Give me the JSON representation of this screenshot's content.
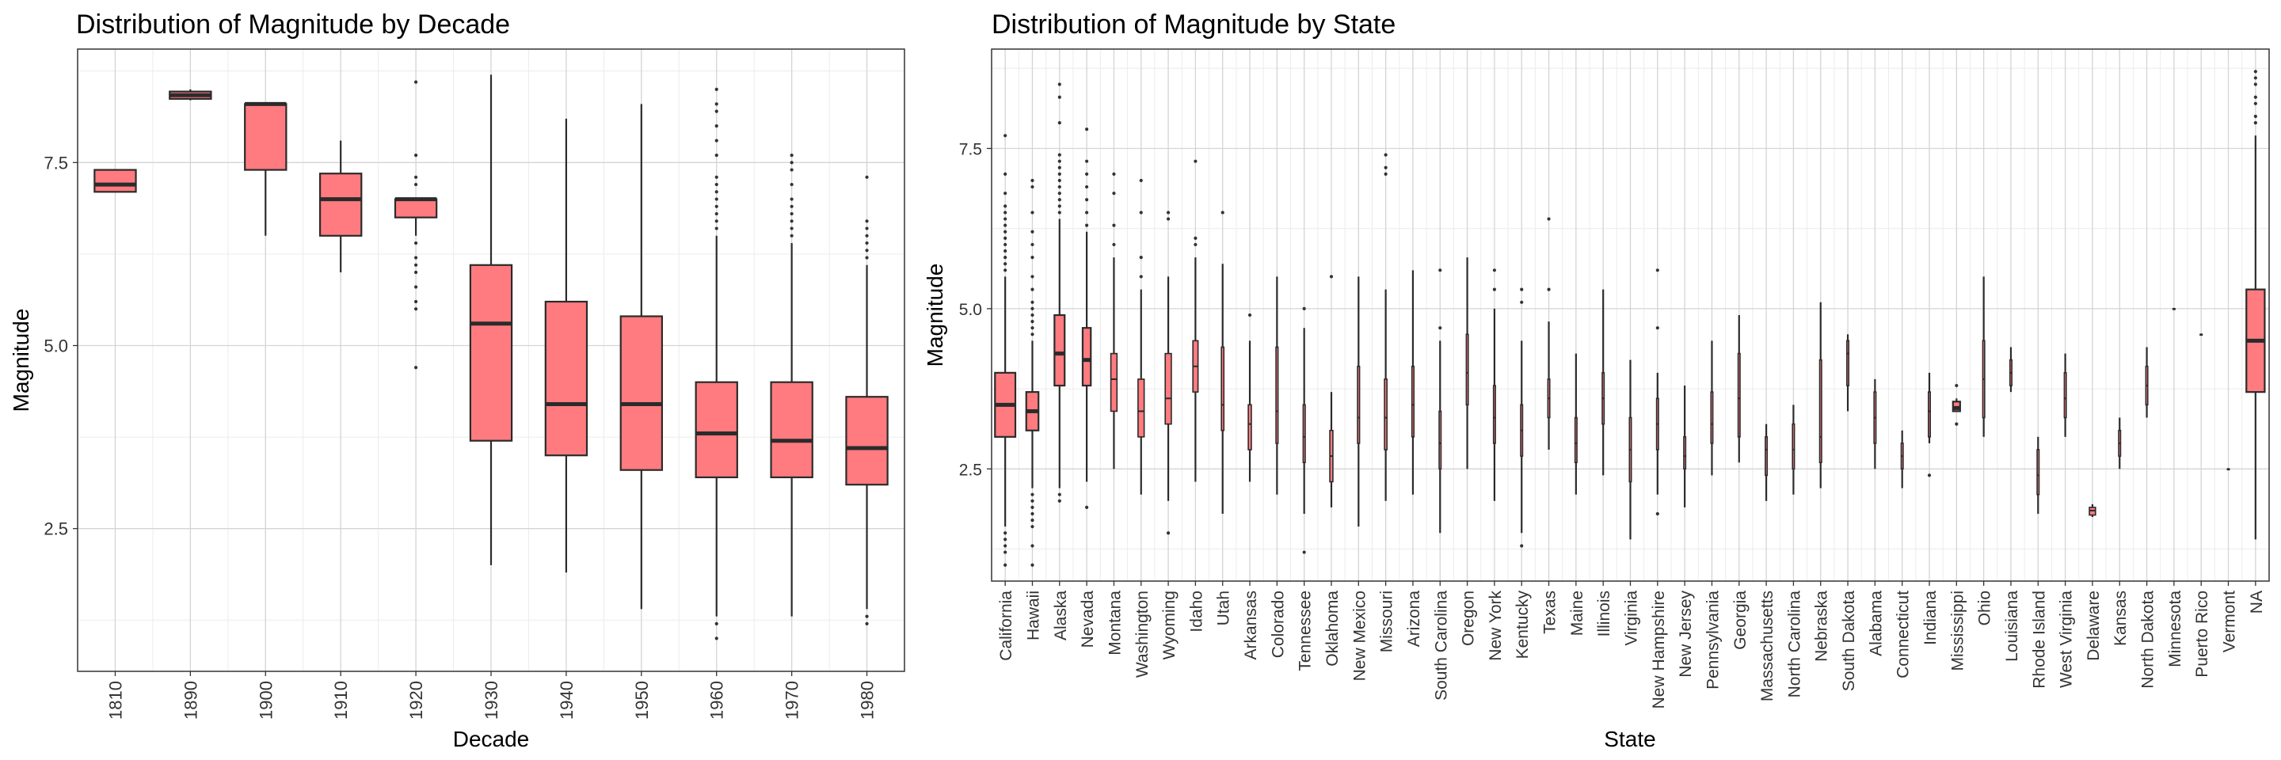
{
  "colors": {
    "box_fill": "#ff7b7f",
    "box_stroke": "#2b2b2b",
    "grid_major": "#d4d4d4",
    "grid_minor": "#ececec",
    "panel_border": "#333333",
    "text": "#000000"
  },
  "chart_data": [
    {
      "type": "box",
      "title": "Distribution of Magnitude by Decade",
      "xlabel": "Decade",
      "ylabel": "Magnitude",
      "ylim": [
        0.55,
        9.05
      ],
      "yticks": [
        2.5,
        5.0,
        7.5
      ],
      "ytick_labels": [
        "2.5",
        "5.0",
        "7.5"
      ],
      "grid": true,
      "categories": [
        "1810",
        "1890",
        "1900",
        "1910",
        "1920",
        "1930",
        "1940",
        "1950",
        "1960",
        "1970",
        "1980"
      ],
      "boxes": [
        {
          "min": 7.1,
          "q1": 7.1,
          "median": 7.2,
          "q3": 7.4,
          "max": 7.4,
          "outliers": []
        },
        {
          "min": 8.35,
          "q1": 8.37,
          "median": 8.42,
          "q3": 8.47,
          "max": 8.5,
          "outliers": []
        },
        {
          "min": 6.5,
          "q1": 7.4,
          "median": 8.3,
          "q3": 8.3,
          "max": 8.3,
          "outliers": []
        },
        {
          "min": 6.0,
          "q1": 6.5,
          "median": 7.0,
          "q3": 7.35,
          "max": 7.8,
          "outliers": []
        },
        {
          "min": 6.5,
          "q1": 6.75,
          "median": 7.0,
          "q3": 7.0,
          "max": 7.0,
          "outliers": [
            8.6,
            7.6,
            7.3,
            7.2,
            6.4,
            6.2,
            6.1,
            6.0,
            5.8,
            5.6,
            5.5,
            4.7
          ]
        },
        {
          "min": 2.0,
          "q1": 3.7,
          "median": 5.3,
          "q3": 6.1,
          "max": 8.7,
          "outliers": []
        },
        {
          "min": 1.9,
          "q1": 3.5,
          "median": 4.2,
          "q3": 5.6,
          "max": 8.1,
          "outliers": []
        },
        {
          "min": 1.4,
          "q1": 3.3,
          "median": 4.2,
          "q3": 5.4,
          "max": 8.3,
          "outliers": []
        },
        {
          "min": 1.3,
          "q1": 3.2,
          "median": 3.8,
          "q3": 4.5,
          "max": 6.5,
          "outliers": [
            8.5,
            8.3,
            8.2,
            8.0,
            7.8,
            7.6,
            7.3,
            7.2,
            7.1,
            7.0,
            6.9,
            6.8,
            6.7,
            6.6,
            1.2,
            1.0
          ]
        },
        {
          "min": 1.3,
          "q1": 3.2,
          "median": 3.7,
          "q3": 4.5,
          "max": 6.4,
          "outliers": [
            7.6,
            7.5,
            7.4,
            7.2,
            7.0,
            6.9,
            6.8,
            6.7,
            6.6,
            6.5
          ]
        },
        {
          "min": 1.4,
          "q1": 3.1,
          "median": 3.6,
          "q3": 4.3,
          "max": 6.1,
          "outliers": [
            7.3,
            6.7,
            6.6,
            6.5,
            6.4,
            6.3,
            6.2,
            1.3,
            1.2
          ]
        }
      ]
    },
    {
      "type": "box",
      "title": "Distribution of Magnitude by State",
      "xlabel": "State",
      "ylabel": "Magnitude",
      "ylim": [
        0.75,
        9.05
      ],
      "yticks": [
        2.5,
        5.0,
        7.5
      ],
      "ytick_labels": [
        "2.5",
        "5.0",
        "7.5"
      ],
      "grid": true,
      "categories": [
        "California",
        "Hawaii",
        "Alaska",
        "Nevada",
        "Montana",
        "Washington",
        "Wyoming",
        "Idaho",
        "Utah",
        "Arkansas",
        "Colorado",
        "Tennessee",
        "Oklahoma",
        "New Mexico",
        "Missouri",
        "Arizona",
        "South Carolina",
        "Oregon",
        "New York",
        "Kentucky",
        "Texas",
        "Maine",
        "Illinois",
        "Virginia",
        "New Hampshire",
        "New Jersey",
        "Pennsylvania",
        "Georgia",
        "Massachusetts",
        "North Carolina",
        "Nebraska",
        "South Dakota",
        "Alabama",
        "Connecticut",
        "Indiana",
        "Mississippi",
        "Ohio",
        "Louisiana",
        "Rhode Island",
        "West Virginia",
        "Delaware",
        "Kansas",
        "North Dakota",
        "Minnesota",
        "Puerto Rico",
        "Vermont",
        "NA"
      ],
      "boxes": [
        {
          "min": 1.6,
          "q1": 3.0,
          "median": 3.5,
          "q3": 4.0,
          "max": 5.5,
          "width": 1.0,
          "outliers": [
            7.7,
            7.1,
            6.8,
            6.6,
            6.5,
            6.4,
            6.3,
            6.2,
            6.1,
            6.0,
            5.9,
            5.8,
            5.7,
            5.6,
            1.5,
            1.4,
            1.3,
            1.2,
            1.0
          ]
        },
        {
          "min": 2.2,
          "q1": 3.1,
          "median": 3.4,
          "q3": 3.7,
          "max": 4.5,
          "width": 0.6,
          "outliers": [
            7.0,
            6.9,
            6.5,
            6.2,
            6.0,
            5.8,
            5.5,
            5.3,
            5.1,
            5.0,
            4.9,
            4.8,
            4.7,
            4.6,
            2.1,
            2.0,
            1.9,
            1.8,
            1.7,
            1.6,
            1.3,
            1.0
          ]
        },
        {
          "min": 2.2,
          "q1": 3.8,
          "median": 4.3,
          "q3": 4.9,
          "max": 6.4,
          "width": 0.5,
          "outliers": [
            8.5,
            8.3,
            7.9,
            7.4,
            7.3,
            7.2,
            7.1,
            7.0,
            6.9,
            6.8,
            6.7,
            6.6,
            6.5,
            2.1,
            2.0
          ]
        },
        {
          "min": 2.3,
          "q1": 3.8,
          "median": 4.2,
          "q3": 4.7,
          "max": 6.2,
          "width": 0.4,
          "outliers": [
            7.8,
            7.3,
            7.1,
            6.9,
            6.7,
            6.5,
            6.3,
            1.9
          ]
        },
        {
          "min": 2.5,
          "q1": 3.4,
          "median": 3.9,
          "q3": 4.3,
          "max": 5.8,
          "width": 0.3,
          "outliers": [
            7.1,
            6.8,
            6.3,
            6.0
          ]
        },
        {
          "min": 2.1,
          "q1": 3.0,
          "median": 3.4,
          "q3": 3.9,
          "max": 5.3,
          "width": 0.3,
          "outliers": [
            7.0,
            6.5,
            5.8,
            5.5
          ]
        },
        {
          "min": 2.0,
          "q1": 3.2,
          "median": 3.6,
          "q3": 4.3,
          "max": 5.5,
          "width": 0.3,
          "outliers": [
            6.5,
            6.4,
            1.5
          ]
        },
        {
          "min": 2.3,
          "q1": 3.7,
          "median": 4.1,
          "q3": 4.5,
          "max": 5.8,
          "width": 0.25,
          "outliers": [
            7.3,
            6.1,
            6.0
          ]
        },
        {
          "min": 1.8,
          "q1": 3.1,
          "median": 3.5,
          "q3": 4.4,
          "max": 5.7,
          "width": 0.12,
          "outliers": [
            6.5
          ]
        },
        {
          "min": 2.3,
          "q1": 2.8,
          "median": 3.2,
          "q3": 3.5,
          "max": 4.5,
          "width": 0.15,
          "outliers": [
            4.9
          ]
        },
        {
          "min": 2.1,
          "q1": 2.9,
          "median": 3.4,
          "q3": 4.4,
          "max": 5.5,
          "width": 0.1,
          "outliers": []
        },
        {
          "min": 1.8,
          "q1": 2.6,
          "median": 3.0,
          "q3": 3.5,
          "max": 4.7,
          "width": 0.1,
          "outliers": [
            5.0,
            1.2
          ]
        },
        {
          "min": 1.9,
          "q1": 2.3,
          "median": 2.7,
          "q3": 3.1,
          "max": 3.7,
          "width": 0.15,
          "outliers": [
            5.5
          ]
        },
        {
          "min": 1.6,
          "q1": 2.9,
          "median": 3.3,
          "q3": 4.1,
          "max": 5.5,
          "width": 0.1,
          "outliers": []
        },
        {
          "min": 2.0,
          "q1": 2.8,
          "median": 3.3,
          "q3": 3.9,
          "max": 5.3,
          "width": 0.12,
          "outliers": [
            7.4,
            7.2,
            7.1
          ]
        },
        {
          "min": 2.1,
          "q1": 3.0,
          "median": 3.5,
          "q3": 4.1,
          "max": 5.6,
          "width": 0.1,
          "outliers": []
        },
        {
          "min": 1.5,
          "q1": 2.5,
          "median": 2.9,
          "q3": 3.4,
          "max": 4.5,
          "width": 0.08,
          "outliers": [
            5.6,
            4.7
          ]
        },
        {
          "min": 2.5,
          "q1": 3.5,
          "median": 4.0,
          "q3": 4.6,
          "max": 5.8,
          "width": 0.08,
          "outliers": []
        },
        {
          "min": 2.0,
          "q1": 2.9,
          "median": 3.3,
          "q3": 3.8,
          "max": 5.0,
          "width": 0.08,
          "outliers": [
            5.6,
            5.3
          ]
        },
        {
          "min": 1.5,
          "q1": 2.7,
          "median": 3.1,
          "q3": 3.5,
          "max": 4.5,
          "width": 0.08,
          "outliers": [
            5.3,
            5.1,
            1.3
          ]
        },
        {
          "min": 2.8,
          "q1": 3.3,
          "median": 3.6,
          "q3": 3.9,
          "max": 4.8,
          "width": 0.08,
          "outliers": [
            6.4,
            5.3
          ]
        },
        {
          "min": 2.1,
          "q1": 2.6,
          "median": 2.9,
          "q3": 3.3,
          "max": 4.3,
          "width": 0.06,
          "outliers": []
        },
        {
          "min": 2.4,
          "q1": 3.2,
          "median": 3.6,
          "q3": 4.0,
          "max": 5.3,
          "width": 0.06,
          "outliers": []
        },
        {
          "min": 1.4,
          "q1": 2.3,
          "median": 2.8,
          "q3": 3.3,
          "max": 4.2,
          "width": 0.06,
          "outliers": []
        },
        {
          "min": 2.1,
          "q1": 2.8,
          "median": 3.2,
          "q3": 3.6,
          "max": 4.0,
          "width": 0.06,
          "outliers": [
            5.6,
            4.7,
            1.8
          ]
        },
        {
          "min": 1.9,
          "q1": 2.5,
          "median": 2.7,
          "q3": 3.0,
          "max": 3.8,
          "width": 0.06,
          "outliers": []
        },
        {
          "min": 2.4,
          "q1": 2.9,
          "median": 3.2,
          "q3": 3.7,
          "max": 4.5,
          "width": 0.06,
          "outliers": []
        },
        {
          "min": 2.6,
          "q1": 3.0,
          "median": 3.6,
          "q3": 4.3,
          "max": 4.9,
          "width": 0.06,
          "outliers": []
        },
        {
          "min": 2.0,
          "q1": 2.4,
          "median": 2.8,
          "q3": 3.0,
          "max": 3.2,
          "width": 0.06,
          "outliers": []
        },
        {
          "min": 2.1,
          "q1": 2.5,
          "median": 2.8,
          "q3": 3.2,
          "max": 3.5,
          "width": 0.06,
          "outliers": []
        },
        {
          "min": 2.2,
          "q1": 2.6,
          "median": 3.0,
          "q3": 4.2,
          "max": 5.1,
          "width": 0.06,
          "outliers": []
        },
        {
          "min": 3.4,
          "q1": 3.8,
          "median": 4.3,
          "q3": 4.5,
          "max": 4.6,
          "width": 0.06,
          "outliers": []
        },
        {
          "min": 2.5,
          "q1": 2.9,
          "median": 3.3,
          "q3": 3.7,
          "max": 3.9,
          "width": 0.06,
          "outliers": []
        },
        {
          "min": 2.2,
          "q1": 2.5,
          "median": 2.7,
          "q3": 2.9,
          "max": 3.1,
          "width": 0.06,
          "outliers": []
        },
        {
          "min": 2.9,
          "q1": 3.0,
          "median": 3.4,
          "q3": 3.7,
          "max": 4.0,
          "width": 0.06,
          "outliers": [
            2.4
          ]
        },
        {
          "min": 3.4,
          "q1": 3.4,
          "median": 3.45,
          "q3": 3.55,
          "max": 3.6,
          "width": 0.35,
          "outliers": [
            3.8,
            3.2
          ]
        },
        {
          "min": 3.0,
          "q1": 3.3,
          "median": 3.9,
          "q3": 4.5,
          "max": 5.5,
          "width": 0.06,
          "outliers": []
        },
        {
          "min": 3.7,
          "q1": 3.8,
          "median": 4.0,
          "q3": 4.2,
          "max": 4.4,
          "width": 0.06,
          "outliers": []
        },
        {
          "min": 1.8,
          "q1": 2.1,
          "median": 2.4,
          "q3": 2.8,
          "max": 3.0,
          "width": 0.06,
          "outliers": []
        },
        {
          "min": 3.0,
          "q1": 3.3,
          "median": 3.6,
          "q3": 4.0,
          "max": 4.3,
          "width": 0.06,
          "outliers": []
        },
        {
          "min": 1.75,
          "q1": 1.78,
          "median": 1.85,
          "q3": 1.9,
          "max": 1.95,
          "width": 0.3,
          "outliers": []
        },
        {
          "min": 2.5,
          "q1": 2.7,
          "median": 2.9,
          "q3": 3.1,
          "max": 3.3,
          "width": 0.06,
          "outliers": []
        },
        {
          "min": 3.3,
          "q1": 3.5,
          "median": 3.8,
          "q3": 4.1,
          "max": 4.4,
          "width": 0.06,
          "outliers": []
        },
        {
          "min": 5.0,
          "q1": 5.0,
          "median": 5.0,
          "q3": 5.0,
          "max": 5.0,
          "width": 0.06,
          "outliers": []
        },
        {
          "min": 4.6,
          "q1": 4.6,
          "median": 4.6,
          "q3": 4.6,
          "max": 4.6,
          "width": 0.06,
          "outliers": []
        },
        {
          "min": 2.5,
          "q1": 2.5,
          "median": 2.5,
          "q3": 2.5,
          "max": 2.5,
          "width": 0.06,
          "outliers": []
        },
        {
          "min": 1.4,
          "q1": 3.7,
          "median": 4.5,
          "q3": 5.3,
          "max": 7.7,
          "width": 0.9,
          "outliers": [
            8.7,
            8.6,
            8.5,
            8.3,
            8.2,
            8.0,
            7.9
          ]
        }
      ]
    }
  ]
}
